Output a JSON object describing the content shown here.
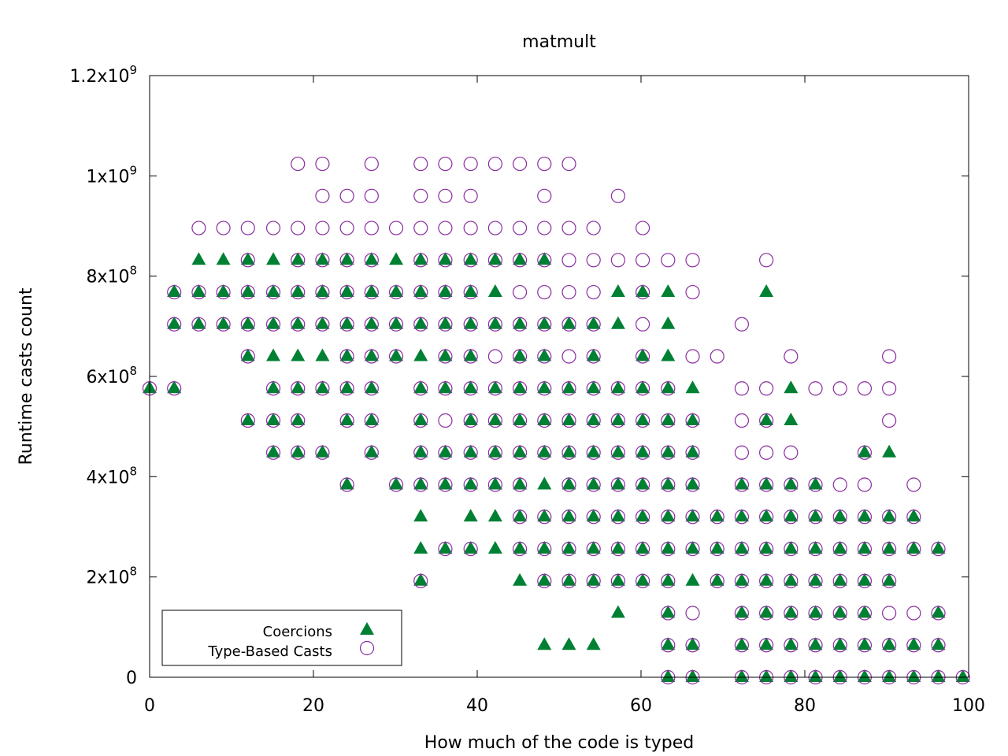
{
  "chart_data": {
    "type": "scatter",
    "title": "matmult",
    "xlabel": "How much of the code is typed",
    "ylabel": "Runtime casts count",
    "xlim": [
      0,
      100
    ],
    "ylim": [
      0,
      1200000000
    ],
    "x_ticks": [
      {
        "value": 0,
        "label": "0"
      },
      {
        "value": 20,
        "label": "20"
      },
      {
        "value": 40,
        "label": "40"
      },
      {
        "value": 60,
        "label": "60"
      },
      {
        "value": 80,
        "label": "80"
      },
      {
        "value": 100,
        "label": "100"
      }
    ],
    "y_ticks": [
      {
        "value": 0,
        "label": "0",
        "base": "0",
        "exp": ""
      },
      {
        "value": 200000000,
        "label": "2x10^8",
        "base": "2x10",
        "exp": "8"
      },
      {
        "value": 400000000,
        "label": "4x10^8",
        "base": "4x10",
        "exp": "8"
      },
      {
        "value": 600000000,
        "label": "6x10^8",
        "base": "6x10",
        "exp": "8"
      },
      {
        "value": 800000000,
        "label": "8x10^8",
        "base": "8x10",
        "exp": "8"
      },
      {
        "value": 1000000000,
        "label": "1x10^9",
        "base": "1x10",
        "exp": "9"
      },
      {
        "value": 1200000000,
        "label": "1.2x10^9",
        "base": "1.2x10",
        "exp": "9"
      }
    ],
    "grid": false,
    "legend_position": "bottom-left",
    "colors": {
      "coercions": "#008033",
      "type_based": "#8b2ca0"
    },
    "y_levels": [
      0,
      64000000,
      128000000,
      192000000,
      256000000,
      320000000,
      384000000,
      448000000,
      512000000,
      576000000,
      640000000,
      704000000,
      768000000,
      832000000,
      896000000,
      960000000,
      1024000000
    ],
    "series": [
      {
        "name": "Coercions",
        "marker": "filled-triangle",
        "points_by_level": [
          [
            63.3,
            66.3,
            72.3,
            75.3,
            78.3,
            81.3,
            84.3,
            87.3,
            90.3,
            93.3,
            96.3,
            99.3
          ],
          [
            48.2,
            51.2,
            54.2,
            63.3,
            66.3,
            72.3,
            75.3,
            78.3,
            81.3,
            84.3,
            87.3,
            90.3,
            93.3,
            96.3
          ],
          [
            57.2,
            63.3,
            72.3,
            75.3,
            78.3,
            81.3,
            84.3,
            87.3,
            96.3
          ],
          [
            33.1,
            45.2,
            48.2,
            51.2,
            54.2,
            57.2,
            60.2,
            63.3,
            66.3,
            69.3,
            72.3,
            75.3,
            78.3,
            81.3,
            84.3,
            87.3,
            90.3
          ],
          [
            33.1,
            36.1,
            39.2,
            42.2,
            45.2,
            48.2,
            51.2,
            54.2,
            57.2,
            60.2,
            63.3,
            66.3,
            69.3,
            72.3,
            75.3,
            78.3,
            81.3,
            84.3,
            87.3,
            90.3,
            93.3,
            96.3
          ],
          [
            33.1,
            39.2,
            42.2,
            45.2,
            48.2,
            51.2,
            54.2,
            57.2,
            60.2,
            63.3,
            66.3,
            69.3,
            72.3,
            75.3,
            78.3,
            81.3,
            84.3,
            87.3,
            90.3,
            93.3
          ],
          [
            24.1,
            30.1,
            33.1,
            36.1,
            39.2,
            42.2,
            45.2,
            48.2,
            51.2,
            54.2,
            57.2,
            60.2,
            63.3,
            66.3,
            72.3,
            75.3,
            78.3,
            81.3
          ],
          [
            15.1,
            18.1,
            21.1,
            27.1,
            33.1,
            36.1,
            39.2,
            42.2,
            45.2,
            48.2,
            51.2,
            54.2,
            57.2,
            60.2,
            63.3,
            66.3,
            87.3,
            90.3
          ],
          [
            12.0,
            15.1,
            18.1,
            24.1,
            27.1,
            33.1,
            39.2,
            42.2,
            45.2,
            48.2,
            51.2,
            54.2,
            57.2,
            60.2,
            63.3,
            66.3,
            75.3,
            78.3
          ],
          [
            0.0,
            3.0,
            15.1,
            18.1,
            21.1,
            24.1,
            27.1,
            33.1,
            36.1,
            39.2,
            42.2,
            45.2,
            48.2,
            51.2,
            54.2,
            57.2,
            60.2,
            63.3,
            66.3,
            78.3
          ],
          [
            12.0,
            15.1,
            18.1,
            21.1,
            24.1,
            27.1,
            30.1,
            33.1,
            36.1,
            39.2,
            45.2,
            48.2,
            54.2,
            60.2,
            63.3
          ],
          [
            3.0,
            6.0,
            9.0,
            12.0,
            15.1,
            18.1,
            21.1,
            24.1,
            27.1,
            30.1,
            33.1,
            36.1,
            39.2,
            42.2,
            45.2,
            48.2,
            51.2,
            54.2,
            57.2,
            63.3
          ],
          [
            3.0,
            6.0,
            9.0,
            12.0,
            15.1,
            18.1,
            21.1,
            24.1,
            27.1,
            30.1,
            33.1,
            36.1,
            39.2,
            42.2,
            57.2,
            60.2,
            63.3,
            75.3
          ],
          [
            6.0,
            9.0,
            12.0,
            15.1,
            18.1,
            21.1,
            24.1,
            27.1,
            30.1,
            33.1,
            36.1,
            39.2,
            42.2,
            45.2,
            48.2
          ],
          [],
          [],
          []
        ]
      },
      {
        "name": "Type-Based Casts",
        "marker": "open-circle",
        "points_by_level": [
          [
            63.3,
            66.3,
            72.3,
            75.3,
            78.3,
            81.3,
            84.3,
            87.3,
            90.3,
            93.3,
            96.3,
            99.3
          ],
          [
            63.3,
            66.3,
            72.3,
            75.3,
            78.3,
            81.3,
            84.3,
            87.3,
            90.3,
            93.3,
            96.3
          ],
          [
            63.3,
            66.3,
            72.3,
            75.3,
            78.3,
            81.3,
            84.3,
            87.3,
            90.3,
            93.3,
            96.3
          ],
          [
            33.1,
            48.2,
            51.2,
            54.2,
            57.2,
            60.2,
            63.3,
            69.3,
            72.3,
            75.3,
            78.3,
            81.3,
            84.3,
            87.3,
            90.3
          ],
          [
            36.1,
            39.2,
            45.2,
            48.2,
            51.2,
            54.2,
            57.2,
            60.2,
            63.3,
            66.3,
            69.3,
            72.3,
            75.3,
            78.3,
            81.3,
            84.3,
            87.3,
            90.3,
            93.3,
            96.3
          ],
          [
            45.2,
            48.2,
            51.2,
            54.2,
            57.2,
            60.2,
            63.3,
            66.3,
            69.3,
            72.3,
            75.3,
            78.3,
            81.3,
            84.3,
            87.3,
            90.3,
            93.3
          ],
          [
            24.1,
            30.1,
            33.1,
            36.1,
            39.2,
            42.2,
            45.2,
            51.2,
            54.2,
            57.2,
            60.2,
            63.3,
            66.3,
            72.3,
            75.3,
            78.3,
            81.3,
            84.3,
            87.3,
            93.3
          ],
          [
            15.1,
            18.1,
            21.1,
            27.1,
            33.1,
            36.1,
            39.2,
            42.2,
            45.2,
            48.2,
            51.2,
            54.2,
            57.2,
            60.2,
            63.3,
            66.3,
            72.3,
            75.3,
            78.3,
            87.3
          ],
          [
            12.0,
            15.1,
            18.1,
            24.1,
            27.1,
            33.1,
            36.1,
            39.2,
            42.2,
            45.2,
            48.2,
            51.2,
            54.2,
            57.2,
            60.2,
            63.3,
            66.3,
            72.3,
            75.3,
            90.3
          ],
          [
            0.0,
            3.0,
            15.1,
            18.1,
            21.1,
            24.1,
            27.1,
            33.1,
            36.1,
            39.2,
            42.2,
            45.2,
            48.2,
            51.2,
            54.2,
            57.2,
            60.2,
            63.3,
            72.3,
            75.3,
            81.3,
            84.3,
            87.3,
            90.3
          ],
          [
            12.0,
            24.1,
            27.1,
            30.1,
            36.1,
            39.2,
            42.2,
            45.2,
            48.2,
            51.2,
            54.2,
            60.2,
            66.3,
            69.3,
            78.3,
            90.3
          ],
          [
            3.0,
            6.0,
            9.0,
            12.0,
            15.1,
            18.1,
            21.1,
            24.1,
            27.1,
            30.1,
            33.1,
            36.1,
            39.2,
            42.2,
            45.2,
            48.2,
            51.2,
            54.2,
            60.2,
            72.3
          ],
          [
            3.0,
            6.0,
            9.0,
            12.0,
            15.1,
            18.1,
            21.1,
            24.1,
            27.1,
            30.1,
            33.1,
            36.1,
            39.2,
            45.2,
            48.2,
            51.2,
            54.2,
            60.2,
            66.3
          ],
          [
            12.0,
            18.1,
            21.1,
            24.1,
            27.1,
            33.1,
            36.1,
            39.2,
            42.2,
            45.2,
            48.2,
            51.2,
            54.2,
            57.2,
            60.2,
            63.3,
            66.3,
            75.3
          ],
          [
            6.0,
            9.0,
            12.0,
            15.1,
            18.1,
            21.1,
            24.1,
            27.1,
            30.1,
            33.1,
            36.1,
            39.2,
            42.2,
            45.2,
            48.2,
            51.2,
            54.2,
            60.2
          ],
          [
            21.1,
            24.1,
            27.1,
            33.1,
            36.1,
            39.2,
            48.2,
            57.2
          ],
          [
            18.1,
            21.1,
            27.1,
            33.1,
            36.1,
            39.2,
            42.2,
            45.2,
            48.2,
            51.2
          ]
        ]
      }
    ]
  }
}
